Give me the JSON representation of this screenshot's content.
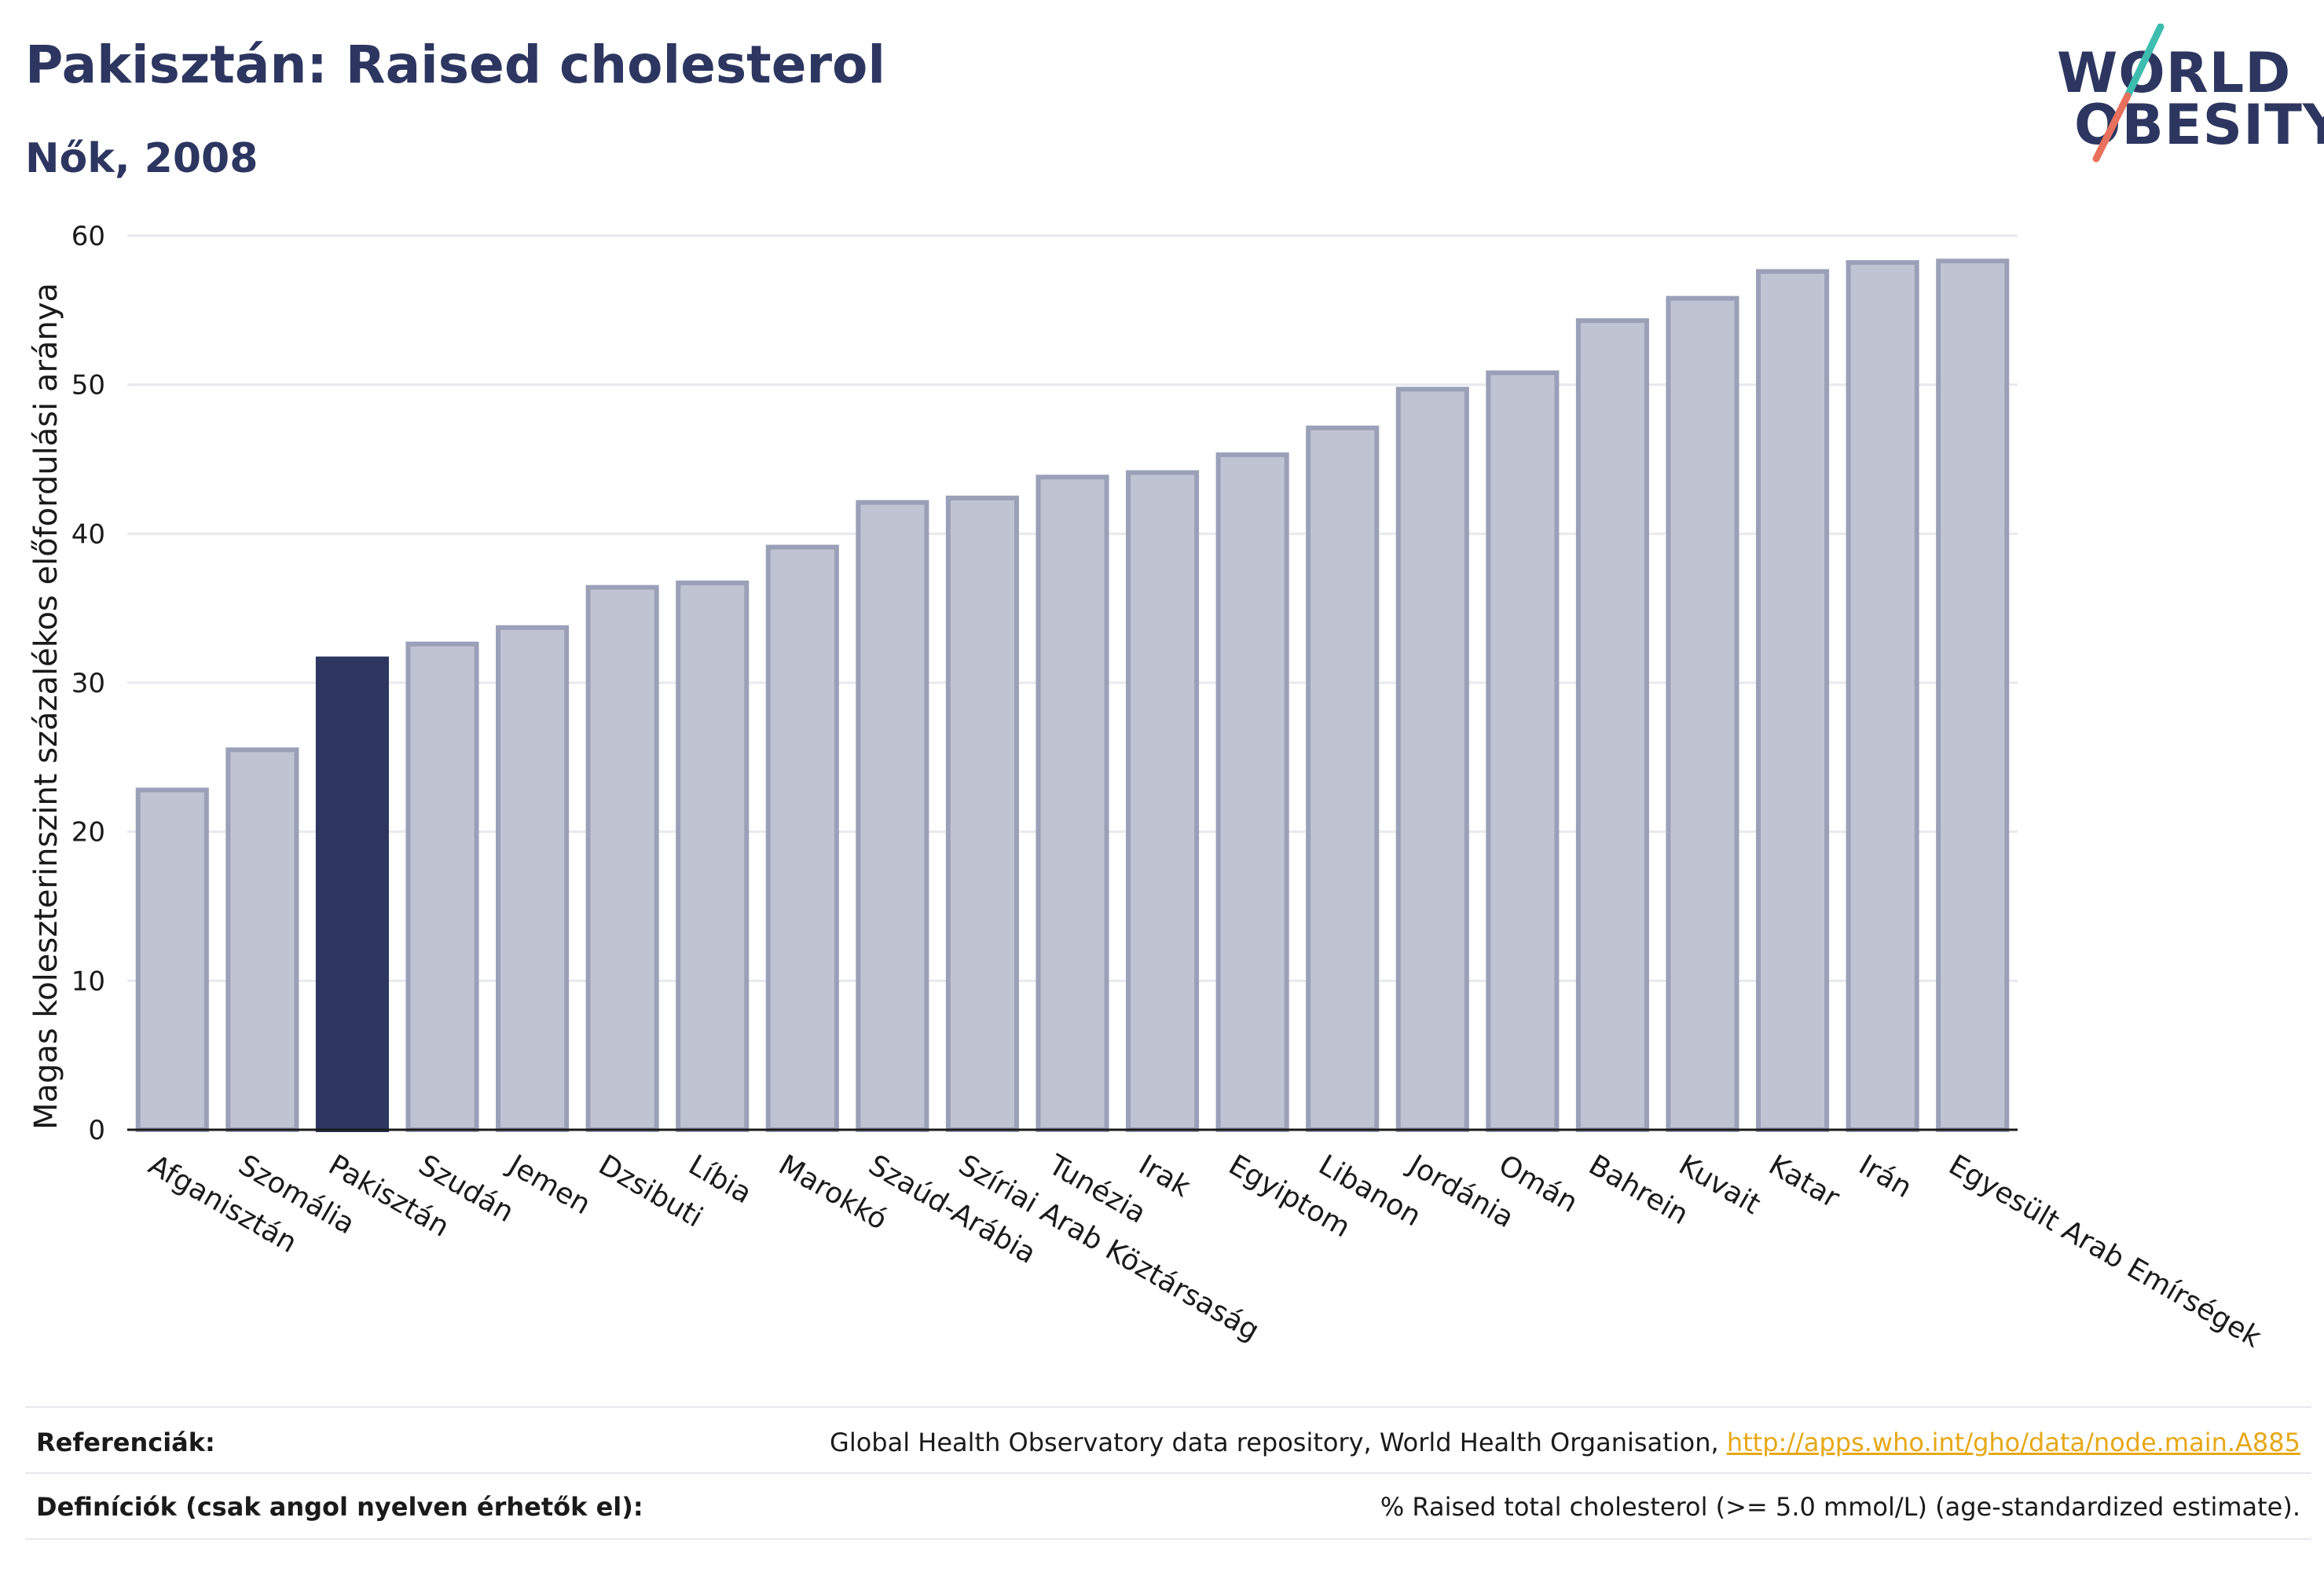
{
  "header": {
    "title": "Pakisztán: Raised cholesterol",
    "subtitle": "Nők, 2008"
  },
  "logo": {
    "line1": "WORLD",
    "line2": "OBESITY",
    "text_color": "#2c3660",
    "accent_teal": "#3dbdb0",
    "accent_coral": "#e8705c"
  },
  "colors": {
    "bar_fill": "#c0c4d2",
    "bar_stroke": "#9aa0b8",
    "highlight_fill": "#2c3660",
    "grid": "#e8e9ef",
    "axis": "#1a1a1a"
  },
  "chart_data": {
    "type": "bar",
    "title": "Pakisztán: Raised cholesterol",
    "subtitle": "Nők, 2008",
    "xlabel": "",
    "ylabel": "Magas koleszterinszint százalékos előfordulási aránya",
    "ylim": [
      0,
      60
    ],
    "yticks": [
      0,
      10,
      20,
      30,
      40,
      50,
      60
    ],
    "grid": true,
    "highlight": "Pakisztán",
    "categories": [
      "Afganisztán",
      "Szomália",
      "Pakisztán",
      "Szudán",
      "Jemen",
      "Dzsibuti",
      "Líbia",
      "Marokkó",
      "Szaúd-Arábia",
      "Szíriai Arab Köztársaság",
      "Tunézia",
      "Irak",
      "Egyiptom",
      "Libanon",
      "Jordánia",
      "Omán",
      "Bahrein",
      "Kuvait",
      "Katar",
      "Irán",
      "Egyesült Arab Emírségek"
    ],
    "values": [
      22.8,
      25.5,
      31.6,
      32.6,
      33.7,
      36.4,
      36.7,
      39.1,
      42.1,
      42.4,
      43.8,
      44.1,
      45.3,
      47.1,
      49.7,
      50.8,
      54.3,
      55.8,
      57.6,
      58.2,
      58.3
    ]
  },
  "footer": {
    "references_label": "Referenciák:",
    "references_text": "Global Health Observatory data repository, World Health Organisation,",
    "references_link": "http://apps.who.int/gho/data/node.main.A885",
    "definitions_label": "Definíciók (csak angol nyelven érhetők el):",
    "definitions_text": "% Raised total cholesterol (>= 5.0 mmol/L) (age-standardized estimate)."
  }
}
